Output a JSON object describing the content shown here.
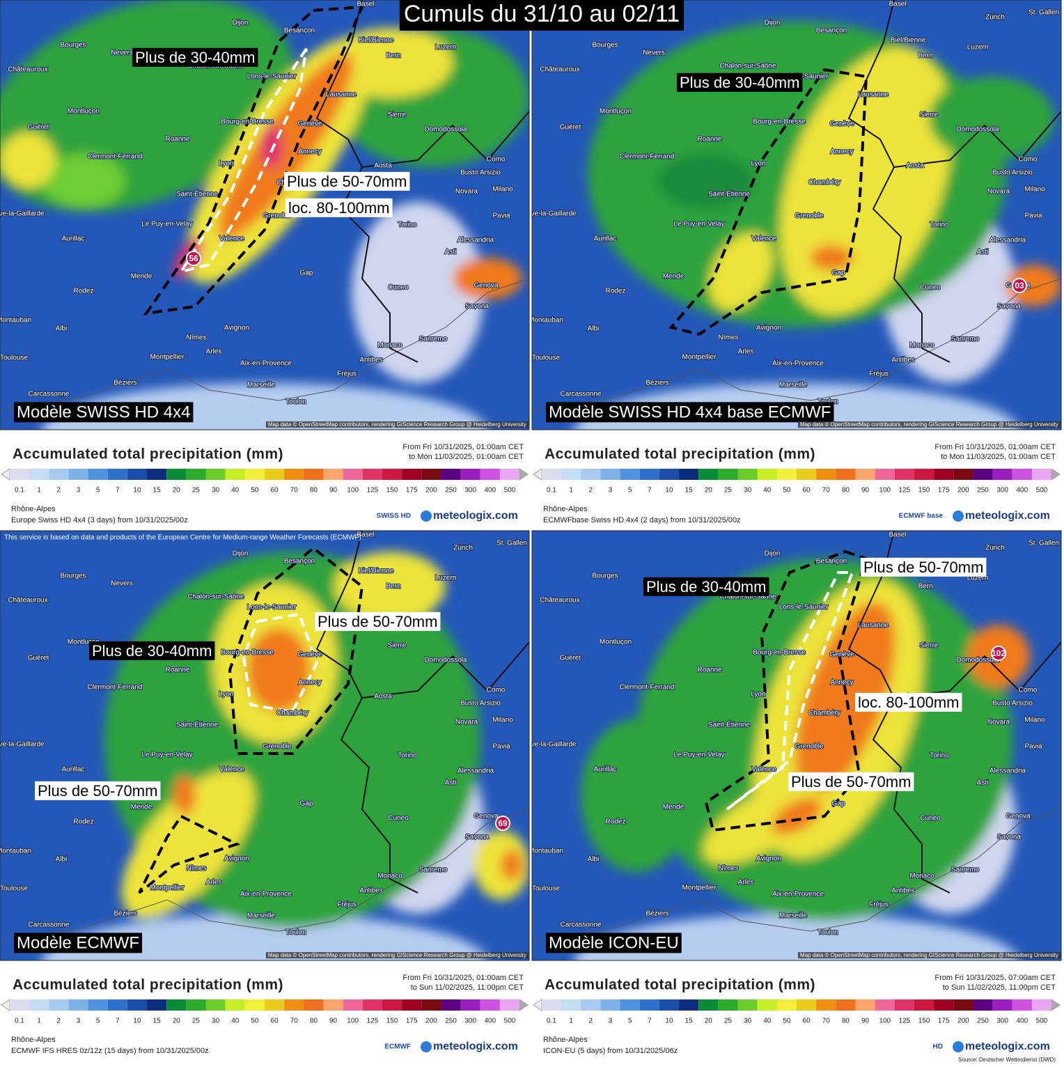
{
  "title": "Cumuls du 31/10 au 02/11",
  "cities": [
    "Dijon",
    "Besançon",
    "Bourges",
    "Nevers",
    "Châteauroux",
    "Chalon-sur-Saône",
    "Lons-le-Saunier",
    "Bern",
    "Biel/Bienne",
    "Luzern",
    "Zürich",
    "Lausanne",
    "Montluçon",
    "Genève",
    "Sierre",
    "Bourg-en-Bresse",
    "Guéret",
    "Roanne",
    "Annecy",
    "Domodossola",
    "Clermont-Ferrand",
    "Lyon",
    "Aosta",
    "Como",
    "Busto Arsizio",
    "Saint-Étienne",
    "Chambéry",
    "Novara",
    "Milano",
    "Brive-la-Gaillarde",
    "Le Puy-en-Velay",
    "Grenoble",
    "Torino",
    "Pavia",
    "Aurillac",
    "Valence",
    "Alessandria",
    "Asti",
    "Rodez",
    "Mende",
    "Gap",
    "Cuneo",
    "Genova",
    "Savona",
    "Montauban",
    "Albi",
    "Avignon",
    "Nîmes",
    "Arles",
    "Monaco",
    "Sanremo",
    "Toulouse",
    "Montpellier",
    "Aix-en-Provence",
    "Antibes",
    "Fréjus",
    "Béziers",
    "Marseille",
    "Carcassonne",
    "Toulon",
    "St. Gallen",
    "Basel"
  ],
  "legend_title": "Accumulated total precipitation (mm)",
  "colorbar_labels": [
    "0.1",
    "1",
    "2",
    "3",
    "5",
    "7",
    "10",
    "15",
    "20",
    "25",
    "30",
    "40",
    "50",
    "60",
    "70",
    "80",
    "90",
    "100",
    "125",
    "150",
    "175",
    "200",
    "250",
    "300",
    "400",
    "500"
  ],
  "brand": "meteologix.com",
  "attribution": "Map data © OpenStreetMap contributors, rendering GIScience Research Group @ Heidelberg University",
  "panels": [
    {
      "model": "Modèle SWISS HD 4x4",
      "max_label": "56",
      "annotations": [
        "Plus de 30-40mm",
        "Plus de 50-70mm",
        "loc. 80-100mm"
      ],
      "date_from": "From Fri 10/31/2025, 01:00am CET",
      "date_to": "to Mon 11/03/2025, 01:00am CET",
      "region": "Rhône-Alpes",
      "run": "Europe Swiss HD 4x4 (3 days) from 10/31/2025/00z",
      "logo": "SWISS HD"
    },
    {
      "model": "Modèle SWISS HD 4x4 base ECMWF",
      "max_label": "03",
      "annotations": [
        "Plus de 30-40mm"
      ],
      "date_from": "From Fri 10/31/2025, 01:00am CET",
      "date_to": "to Mon 11/03/2025, 01:00am CET",
      "region": "Rhône-Alpes",
      "run": "ECMWFbase Swiss HD 4x4 (2 days) from 10/31/2025/00z",
      "logo": "ECMWF base"
    },
    {
      "model": "Modèle ECMWF",
      "max_label": "69",
      "annotations": [
        "Plus de 50-70mm",
        "Plus de 30-40mm",
        "Plus de 50-70mm"
      ],
      "notice": "This service is based on data and products of the European Centre for Medium-range Weather Forecasts (ECMWF)",
      "date_from": "From Fri 10/31/2025, 01:00am CET",
      "date_to": "to Sun 11/02/2025, 11:00pm CET",
      "region": "Rhône-Alpes",
      "run": "ECMWF IFS HRES 0z/12z (15 days) from 10/31/2025/00z",
      "logo": "ECMWF"
    },
    {
      "model": "Modèle ICON-EU",
      "max_label": "102",
      "annotations": [
        "Plus de 50-70mm",
        "Plus de 30-40mm",
        "loc. 80-100mm",
        "Plus de 50-70mm"
      ],
      "date_from": "From Fri 10/31/2025, 07:00am CET",
      "date_to": "to Sun 11/02/2025, 11:00pm CET",
      "region": "Rhône-Alpes",
      "run": "ICON-EU (5 days) from 10/31/2025/06z",
      "logo": "HD",
      "source": "Source: Deutscher Wetterdienst (DWD)"
    }
  ]
}
